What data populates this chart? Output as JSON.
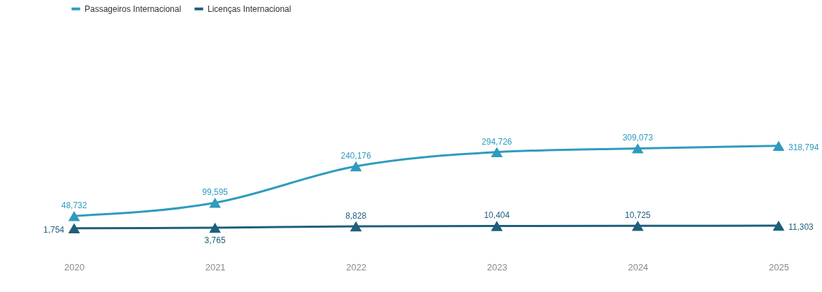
{
  "chart_data": {
    "type": "line",
    "categories": [
      "2020",
      "2021",
      "2022",
      "2023",
      "2024",
      "2025"
    ],
    "series": [
      {
        "name": "Passageiros Internacional",
        "color": "#2e9bbf",
        "values": [
          48732,
          99595,
          240176,
          294726,
          309073,
          318794
        ],
        "value_labels": [
          "48,732",
          "99,595",
          "240,176",
          "294,726",
          "309,073",
          "318,794"
        ]
      },
      {
        "name": "Licenças Internacional",
        "color": "#1d5f7c",
        "values": [
          1754,
          3765,
          8828,
          10404,
          10725,
          11303
        ],
        "value_labels": [
          "1,754",
          "3,765",
          "8,828",
          "10,404",
          "10,725",
          "11,303"
        ]
      }
    ],
    "marker": "triangle",
    "legend": "top left",
    "grid": false,
    "line_style": "solid"
  }
}
